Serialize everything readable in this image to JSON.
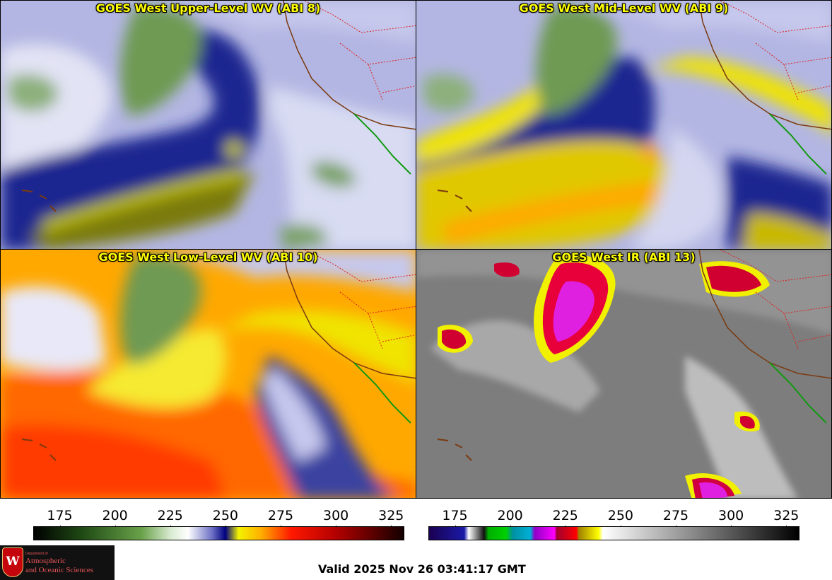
{
  "panels": [
    {
      "title": "GOES West Upper-Level WV (ABI 8)",
      "palette": "wv_upper"
    },
    {
      "title": "GOES West Mid-Level WV (ABI 9)",
      "palette": "wv_mid"
    },
    {
      "title": "GOES West Low-Level WV (ABI 10)",
      "palette": "wv_low"
    },
    {
      "title": "GOES West IR (ABI 13)",
      "palette": "ir"
    }
  ],
  "colorbars": [
    {
      "ticks": [
        "175",
        "200",
        "225",
        "250",
        "275",
        "300",
        "325"
      ],
      "tick_values": [
        175,
        200,
        225,
        250,
        275,
        300,
        325
      ],
      "range": [
        163,
        331
      ],
      "stops": [
        {
          "v": 163,
          "c": "#000000"
        },
        {
          "v": 185,
          "c": "#1f4a14"
        },
        {
          "v": 212,
          "c": "#6aa24a"
        },
        {
          "v": 225,
          "c": "#d8ead0"
        },
        {
          "v": 233,
          "c": "#ffffff"
        },
        {
          "v": 244,
          "c": "#6c70c4"
        },
        {
          "v": 250,
          "c": "#00007f"
        },
        {
          "v": 256,
          "c": "#f3f300"
        },
        {
          "v": 266,
          "c": "#ffb000"
        },
        {
          "v": 280,
          "c": "#ff1800"
        },
        {
          "v": 300,
          "c": "#b40000"
        },
        {
          "v": 331,
          "c": "#130000"
        }
      ]
    },
    {
      "ticks": [
        "175",
        "200",
        "225",
        "250",
        "275",
        "300",
        "325"
      ],
      "tick_values": [
        175,
        200,
        225,
        250,
        275,
        300,
        325
      ],
      "range": [
        163,
        331
      ],
      "stops": [
        {
          "v": 163,
          "c": "#1a0050"
        },
        {
          "v": 179,
          "c": "#1a1aa8"
        },
        {
          "v": 181,
          "c": "#ffffff"
        },
        {
          "v": 188,
          "c": "#111111"
        },
        {
          "v": 190,
          "c": "#00b000"
        },
        {
          "v": 198,
          "c": "#00d000"
        },
        {
          "v": 201,
          "c": "#0090a0"
        },
        {
          "v": 209,
          "c": "#00b0d8"
        },
        {
          "v": 211,
          "c": "#9000c8"
        },
        {
          "v": 220,
          "c": "#ff00ff"
        },
        {
          "v": 221,
          "c": "#a00030"
        },
        {
          "v": 230,
          "c": "#ff0000"
        },
        {
          "v": 231,
          "c": "#a08000"
        },
        {
          "v": 240,
          "c": "#ffff00"
        },
        {
          "v": 242,
          "c": "#ffffff"
        },
        {
          "v": 331,
          "c": "#000000"
        }
      ]
    }
  ],
  "logo": {
    "department": "Department of",
    "name_line1": "Atmospheric",
    "name_line2": "and Oceanic Sciences",
    "seal_letter": "W"
  },
  "valid_time": "Valid 2025 Nov 26 03:41:17 GMT"
}
